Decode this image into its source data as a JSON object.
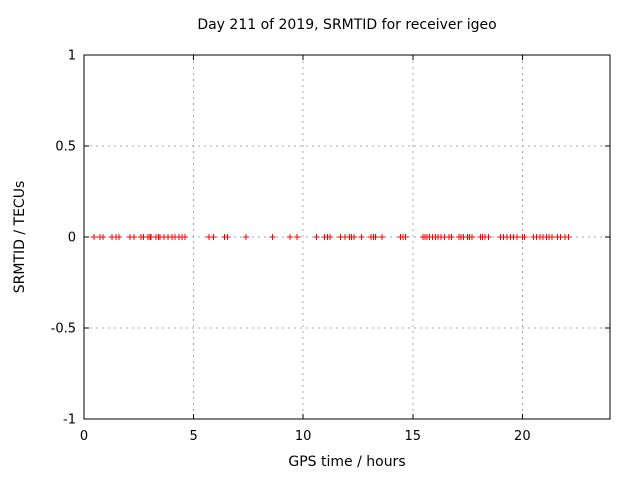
{
  "chart_data": {
    "type": "scatter",
    "title": "Day 211 of 2019, SRMTID for receiver igeo",
    "xlabel": "GPS time / hours",
    "ylabel": "SRMTID / TECUs",
    "xlim": [
      0,
      24
    ],
    "ylim": [
      -1,
      1
    ],
    "xticks": [
      0,
      5,
      10,
      15,
      20
    ],
    "yticks": [
      -1,
      -0.5,
      0,
      0.5,
      1
    ],
    "grid": "dashed",
    "legend": "none",
    "marker": "plus",
    "marker_color": "#ff0000",
    "grid_color": "#a8a8a8",
    "border_color": "#000000",
    "background": "#ffffff",
    "series": [
      {
        "name": "SRMTID",
        "y_constant": 0,
        "x": [
          0.46,
          0.73,
          0.87,
          1.28,
          1.46,
          1.6,
          2.1,
          2.29,
          2.6,
          2.72,
          2.93,
          3.0,
          3.06,
          3.29,
          3.4,
          3.47,
          3.65,
          3.84,
          4.02,
          4.16,
          4.34,
          4.47,
          4.6,
          5.71,
          5.9,
          6.4,
          6.54,
          7.4,
          8.6,
          9.41,
          9.73,
          10.6,
          10.97,
          11.1,
          11.23,
          11.7,
          11.9,
          12.11,
          12.21,
          12.31,
          12.66,
          13.1,
          13.2,
          13.31,
          13.6,
          14.44,
          14.56,
          14.67,
          15.46,
          15.56,
          15.66,
          15.77,
          15.89,
          16.03,
          16.16,
          16.3,
          16.44,
          16.66,
          16.76,
          17.1,
          17.21,
          17.32,
          17.5,
          17.6,
          17.7,
          18.08,
          18.18,
          18.3,
          18.45,
          19.0,
          19.15,
          19.3,
          19.45,
          19.6,
          19.75,
          20.0,
          20.1,
          20.5,
          20.65,
          20.8,
          20.95,
          21.1,
          21.22,
          21.35,
          21.6,
          21.75,
          21.95,
          22.1
        ]
      }
    ]
  }
}
